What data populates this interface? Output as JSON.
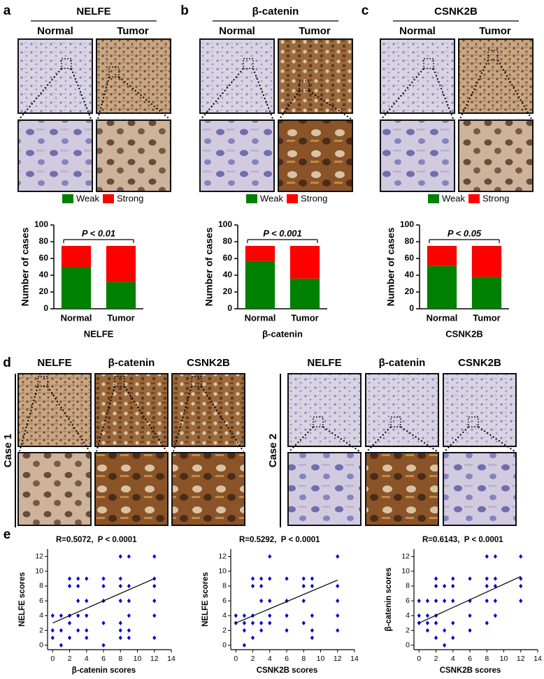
{
  "panel_labels": [
    "a",
    "b",
    "c",
    "d",
    "e"
  ],
  "panel_abc": [
    {
      "title": "NELFE",
      "columns": [
        "Normal",
        "Tumor"
      ]
    },
    {
      "title": "β-catenin",
      "columns": [
        "Normal",
        "Tumor"
      ]
    },
    {
      "title": "CSNK2B",
      "columns": [
        "Normal",
        "Tumor"
      ]
    }
  ],
  "panel_d": {
    "markers": [
      "NELFE",
      "β-catenin",
      "CSNK2B"
    ],
    "cases": [
      "Case 1",
      "Case 2"
    ]
  },
  "chart_data": [
    {
      "type": "bar",
      "stacked": true,
      "categories": [
        "Normal",
        "Tumor"
      ],
      "series": [
        {
          "name": "Weak",
          "color": "#008000",
          "values": [
            50,
            32
          ]
        },
        {
          "name": "Strong",
          "color": "#ff0000",
          "values": [
            25,
            43
          ]
        }
      ],
      "ylabel": "Number of cases",
      "xlabel": "NELFE",
      "annotation": "P < 0.01",
      "ylim": [
        0,
        100
      ],
      "yticks": [
        0,
        20,
        40,
        60,
        80,
        100
      ]
    },
    {
      "type": "bar",
      "stacked": true,
      "categories": [
        "Normal",
        "Tumor"
      ],
      "series": [
        {
          "name": "Weak",
          "color": "#008000",
          "values": [
            57,
            36
          ]
        },
        {
          "name": "Strong",
          "color": "#ff0000",
          "values": [
            18,
            39
          ]
        }
      ],
      "ylabel": "Number of cases",
      "xlabel": "β-catenin",
      "annotation": "P < 0.001",
      "ylim": [
        0,
        100
      ],
      "yticks": [
        0,
        20,
        40,
        60,
        80,
        100
      ]
    },
    {
      "type": "bar",
      "stacked": true,
      "categories": [
        "Normal",
        "Tumor"
      ],
      "series": [
        {
          "name": "Weak",
          "color": "#008000",
          "values": [
            51,
            38
          ]
        },
        {
          "name": "Strong",
          "color": "#ff0000",
          "values": [
            24,
            37
          ]
        }
      ],
      "ylabel": "Number of cases",
      "xlabel": "CSNK2B",
      "annotation": "P < 0.05",
      "ylim": [
        0,
        100
      ],
      "yticks": [
        0,
        20,
        40,
        60,
        80,
        100
      ]
    },
    {
      "type": "scatter",
      "annotation": "R=0.5072,  P < 0.0001",
      "xlabel": "β-catenin scores",
      "ylabel": "NELFE scores",
      "color": "#0000cc",
      "x": [
        0,
        0,
        0,
        1,
        1,
        1,
        2,
        2,
        2,
        2,
        2,
        3,
        3,
        3,
        3,
        3,
        4,
        4,
        4,
        4,
        4,
        6,
        6,
        6,
        6,
        6,
        8,
        8,
        8,
        8,
        8,
        8,
        8,
        9,
        9,
        9,
        9,
        9,
        9,
        12,
        12,
        12,
        12,
        12,
        12
      ],
      "y": [
        1,
        2,
        4,
        0,
        2,
        4,
        1,
        3,
        4,
        8,
        9,
        2,
        4,
        6,
        8,
        9,
        1,
        2,
        4,
        6,
        9,
        0,
        3,
        6,
        8,
        9,
        1,
        2,
        3,
        6,
        8,
        9,
        12,
        1,
        2,
        4,
        6,
        8,
        12,
        1,
        4,
        6,
        8,
        9,
        12
      ],
      "fit_line": {
        "x": [
          0,
          12
        ],
        "y": [
          3,
          9
        ]
      },
      "xlim": [
        -0.6,
        14
      ],
      "ylim": [
        -0.6,
        13
      ],
      "xticks": [
        0,
        2,
        4,
        6,
        8,
        10,
        12,
        14
      ],
      "yticks": [
        0,
        2,
        4,
        6,
        8,
        10,
        12
      ]
    },
    {
      "type": "scatter",
      "annotation": "R=0.5292,  P < 0.0001",
      "xlabel": "CSNK2B scores",
      "ylabel": "NELFE scores",
      "color": "#0000cc",
      "x": [
        0,
        0,
        1,
        1,
        1,
        1,
        2,
        2,
        2,
        2,
        2,
        3,
        3,
        3,
        3,
        3,
        4,
        4,
        4,
        4,
        4,
        6,
        6,
        6,
        6,
        8,
        8,
        8,
        8,
        9,
        9,
        9,
        9,
        9,
        12,
        12,
        12,
        12,
        12
      ],
      "y": [
        3,
        4,
        0,
        2,
        3,
        4,
        1,
        3,
        4,
        8,
        9,
        2,
        3,
        6,
        8,
        9,
        3,
        4,
        6,
        9,
        12,
        2,
        4,
        6,
        9,
        3,
        6,
        8,
        9,
        1,
        2,
        4,
        8,
        9,
        2,
        4,
        6,
        8,
        12
      ],
      "fit_line": {
        "x": [
          0,
          12
        ],
        "y": [
          3,
          8.8
        ]
      },
      "xlim": [
        -0.6,
        14
      ],
      "ylim": [
        -0.6,
        13
      ],
      "xticks": [
        0,
        2,
        4,
        6,
        8,
        10,
        12,
        14
      ],
      "yticks": [
        0,
        2,
        4,
        6,
        8,
        10,
        12
      ]
    },
    {
      "type": "scatter",
      "annotation": "R=0.6143,  P < 0.0001",
      "xlabel": "CSNK2B scores",
      "ylabel": "β-catenin scores",
      "color": "#0000cc",
      "x": [
        0,
        0,
        0,
        1,
        1,
        1,
        1,
        2,
        2,
        2,
        2,
        2,
        2,
        3,
        3,
        3,
        3,
        4,
        4,
        4,
        4,
        4,
        6,
        6,
        6,
        6,
        8,
        8,
        8,
        8,
        8,
        9,
        9,
        9,
        9,
        9,
        12,
        12,
        12,
        12
      ],
      "y": [
        3,
        4,
        6,
        2,
        3,
        4,
        6,
        1,
        3,
        4,
        6,
        8,
        9,
        0,
        2,
        6,
        8,
        1,
        3,
        6,
        8,
        9,
        2,
        4,
        6,
        9,
        3,
        6,
        8,
        9,
        12,
        4,
        6,
        8,
        9,
        12,
        6,
        8,
        9,
        12
      ],
      "fit_line": {
        "x": [
          0,
          12
        ],
        "y": [
          3,
          9.3
        ]
      },
      "xlim": [
        -0.6,
        14
      ],
      "ylim": [
        -0.6,
        13
      ],
      "xticks": [
        0,
        2,
        4,
        6,
        8,
        10,
        12,
        14
      ],
      "yticks": [
        0,
        2,
        4,
        6,
        8,
        10,
        12
      ]
    }
  ]
}
